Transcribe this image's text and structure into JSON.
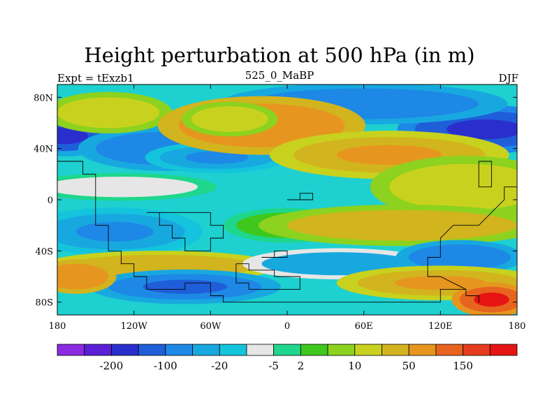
{
  "chart_data": {
    "type": "heatmap",
    "title": "Height perturbation at 500 hPa (in m)",
    "left_string": "Expt = tExzb1",
    "center_string": "525_0_MaBP",
    "right_string": "DJF",
    "x_range": [
      -180,
      180
    ],
    "y_range": [
      -90,
      90
    ],
    "x_ticks": [
      {
        "value": -180,
        "label": "180"
      },
      {
        "value": -120,
        "label": "120W"
      },
      {
        "value": -60,
        "label": "60W"
      },
      {
        "value": 0,
        "label": "0"
      },
      {
        "value": 60,
        "label": "60E"
      },
      {
        "value": 120,
        "label": "120E"
      },
      {
        "value": 180,
        "label": "180"
      }
    ],
    "y_ticks": [
      {
        "value": 80,
        "label": "80N"
      },
      {
        "value": 40,
        "label": "40N"
      },
      {
        "value": 0,
        "label": "0"
      },
      {
        "value": -40,
        "label": "40S"
      },
      {
        "value": -80,
        "label": "80S"
      }
    ],
    "colorbar": {
      "colors": [
        "#8a2be2",
        "#5a1fd6",
        "#2a2ecc",
        "#1f5ed9",
        "#1e88e6",
        "#18a8e0",
        "#14c4dc",
        "#e6e6e6",
        "#1ed78c",
        "#3ec81e",
        "#8cd21e",
        "#c8d21e",
        "#d2b41e",
        "#e6961e",
        "#e6641e",
        "#e63c1e",
        "#e61414"
      ],
      "labels": [
        {
          "after_index": 1,
          "text": "-200"
        },
        {
          "after_index": 3,
          "text": "-100"
        },
        {
          "after_index": 5,
          "text": "-20"
        },
        {
          "after_index": 7,
          "text": "-5"
        },
        {
          "after_index": 8,
          "text": "2"
        },
        {
          "after_index": 10,
          "text": "10"
        },
        {
          "after_index": 12,
          "text": "50"
        },
        {
          "after_index": 14,
          "text": "150"
        }
      ]
    },
    "field_features": [
      {
        "lon": -175,
        "lat": 50,
        "value": -120,
        "rx": 35,
        "ry": 12
      },
      {
        "lon": 155,
        "lat": 55,
        "value": -130,
        "rx": 55,
        "ry": 14
      },
      {
        "lon": 60,
        "lat": 75,
        "value": -60,
        "rx": 90,
        "ry": 12
      },
      {
        "lon": -95,
        "lat": 40,
        "value": -60,
        "rx": 55,
        "ry": 13
      },
      {
        "lon": -55,
        "lat": 33,
        "value": -40,
        "rx": 45,
        "ry": 9
      },
      {
        "lon": -140,
        "lat": 68,
        "value": 20,
        "rx": 40,
        "ry": 12
      },
      {
        "lon": -20,
        "lat": 58,
        "value": 60,
        "rx": 65,
        "ry": 17
      },
      {
        "lon": -45,
        "lat": 63,
        "value": 15,
        "rx": 30,
        "ry": 10
      },
      {
        "lon": 80,
        "lat": 35,
        "value": 40,
        "rx": 75,
        "ry": 14
      },
      {
        "lon": 140,
        "lat": 10,
        "value": 20,
        "rx": 60,
        "ry": 18
      },
      {
        "lon": -130,
        "lat": 10,
        "value": -5,
        "rx": 60,
        "ry": 8
      },
      {
        "lon": -135,
        "lat": -25,
        "value": -40,
        "rx": 55,
        "ry": 14
      },
      {
        "lon": 0,
        "lat": -20,
        "value": 5,
        "rx": 40,
        "ry": 10
      },
      {
        "lon": 90,
        "lat": -20,
        "value": 25,
        "rx": 90,
        "ry": 12
      },
      {
        "lon": -100,
        "lat": -52,
        "value": 35,
        "rx": 75,
        "ry": 9
      },
      {
        "lon": -80,
        "lat": -68,
        "value": -80,
        "rx": 60,
        "ry": 10
      },
      {
        "lon": 40,
        "lat": -50,
        "value": -20,
        "rx": 60,
        "ry": 9
      },
      {
        "lon": 135,
        "lat": -45,
        "value": -60,
        "rx": 40,
        "ry": 10
      },
      {
        "lon": 120,
        "lat": -65,
        "value": 50,
        "rx": 65,
        "ry": 10
      },
      {
        "lon": 160,
        "lat": -78,
        "value": 150,
        "rx": 25,
        "ry": 10
      },
      {
        "lon": -165,
        "lat": -60,
        "value": 60,
        "rx": 25,
        "ry": 10
      }
    ],
    "outline_paths_lonlat": [
      [
        [
          -180,
          30
        ],
        [
          -160,
          30
        ],
        [
          -160,
          20
        ],
        [
          -150,
          20
        ],
        [
          -150,
          0
        ],
        [
          -150,
          -20
        ],
        [
          -140,
          -20
        ],
        [
          -140,
          -40
        ],
        [
          -130,
          -40
        ],
        [
          -130,
          -50
        ],
        [
          -120,
          -50
        ],
        [
          -120,
          -60
        ],
        [
          -110,
          -60
        ],
        [
          -110,
          -70
        ],
        [
          -80,
          -70
        ],
        [
          -80,
          -65
        ],
        [
          -60,
          -65
        ],
        [
          -60,
          -75
        ],
        [
          -50,
          -75
        ],
        [
          -50,
          -80
        ],
        [
          40,
          -80
        ],
        [
          50,
          -80
        ],
        [
          120,
          -80
        ],
        [
          120,
          -70
        ],
        [
          140,
          -70
        ],
        [
          140,
          -75
        ],
        [
          150,
          -75
        ],
        [
          150,
          -80
        ]
      ],
      [
        [
          -110,
          -10
        ],
        [
          -100,
          -10
        ],
        [
          -100,
          -20
        ],
        [
          -90,
          -20
        ],
        [
          -90,
          -30
        ],
        [
          -80,
          -30
        ],
        [
          -80,
          -40
        ],
        [
          -60,
          -40
        ],
        [
          -60,
          -30
        ],
        [
          -50,
          -30
        ],
        [
          -50,
          -20
        ],
        [
          -60,
          -20
        ],
        [
          -60,
          -10
        ],
        [
          -70,
          -10
        ],
        [
          -80,
          -10
        ],
        [
          -90,
          -10
        ],
        [
          -110,
          -10
        ]
      ],
      [
        [
          -40,
          -50
        ],
        [
          -30,
          -50
        ],
        [
          -30,
          -55
        ],
        [
          -10,
          -55
        ],
        [
          -10,
          -60
        ],
        [
          10,
          -60
        ],
        [
          10,
          -70
        ],
        [
          -30,
          -70
        ],
        [
          -30,
          -65
        ],
        [
          -40,
          -65
        ],
        [
          -40,
          -50
        ]
      ],
      [
        [
          -20,
          -45
        ],
        [
          -10,
          -45
        ],
        [
          -10,
          -40
        ],
        [
          0,
          -40
        ],
        [
          0,
          -45
        ],
        [
          -20,
          -45
        ]
      ],
      [
        [
          0,
          0
        ],
        [
          10,
          0
        ],
        [
          10,
          5
        ],
        [
          20,
          5
        ],
        [
          20,
          0
        ],
        [
          10,
          0
        ]
      ],
      [
        [
          150,
          30
        ],
        [
          160,
          30
        ],
        [
          160,
          10
        ],
        [
          150,
          10
        ],
        [
          150,
          30
        ]
      ],
      [
        [
          180,
          10
        ],
        [
          170,
          10
        ],
        [
          170,
          0
        ],
        [
          160,
          -10
        ],
        [
          150,
          -20
        ],
        [
          130,
          -20
        ],
        [
          120,
          -30
        ],
        [
          120,
          -45
        ],
        [
          110,
          -45
        ],
        [
          110,
          -60
        ],
        [
          120,
          -60
        ],
        [
          130,
          -65
        ],
        [
          140,
          -70
        ]
      ]
    ]
  }
}
